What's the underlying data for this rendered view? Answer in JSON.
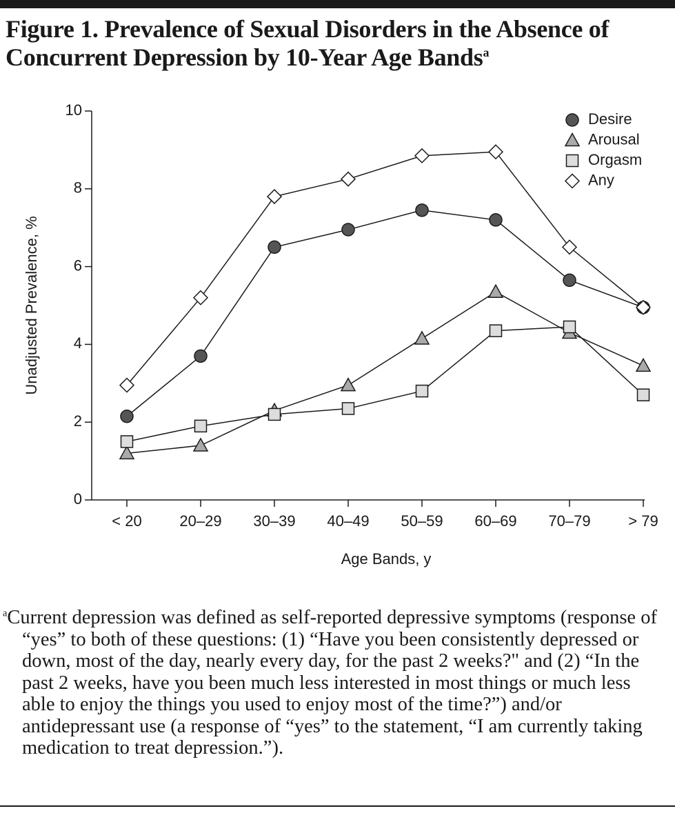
{
  "chart_data": {
    "type": "line",
    "title": "Figure 1. Prevalence of Sexual Disorders in the Absence of Concurrent Depression by 10-Year Age Bands",
    "title_superscript": "a",
    "x_label": "Age Bands, y",
    "y_label": "Unadjusted Prevalence, %",
    "categories": [
      "< 20",
      "20–29",
      "30–39",
      "40–49",
      "50–59",
      "60–69",
      "70–79",
      "> 79"
    ],
    "ylim": [
      0,
      10
    ],
    "yticks": [
      0,
      2,
      4,
      6,
      8,
      10
    ],
    "legend": "top-right",
    "series": [
      {
        "name": "Desire",
        "color": "#555555",
        "marker": "circle",
        "values": [
          2.15,
          3.7,
          6.5,
          6.95,
          7.45,
          7.2,
          5.65,
          4.95
        ]
      },
      {
        "name": "Arousal",
        "color": "#aaaaaa",
        "marker": "triangle",
        "values": [
          1.2,
          1.4,
          2.3,
          2.95,
          4.15,
          5.35,
          4.3,
          3.45
        ]
      },
      {
        "name": "Orgasm",
        "color": "#dddddd",
        "marker": "square",
        "values": [
          1.5,
          1.9,
          2.2,
          2.35,
          2.8,
          4.35,
          4.45,
          2.7
        ]
      },
      {
        "name": "Any",
        "color": "#ffffff",
        "marker": "diamond",
        "values": [
          2.95,
          5.2,
          7.8,
          8.25,
          8.85,
          8.95,
          6.5,
          4.95
        ]
      }
    ],
    "footnote_marker": "a",
    "footnote": "Current depression was defined as self-reported depressive symptoms (response of “yes” to both of these questions: (1) “Have you been consistently depressed or down, most of the day, nearly every day, for the past 2 weeks?\" and (2) “In the past 2 weeks, have you been much less interested in most things or much less able to enjoy the things you used to enjoy most of the time?”) and/or antidepressant use (a response of “yes” to the statement, “I am currently taking medication to treat depression.”)."
  }
}
